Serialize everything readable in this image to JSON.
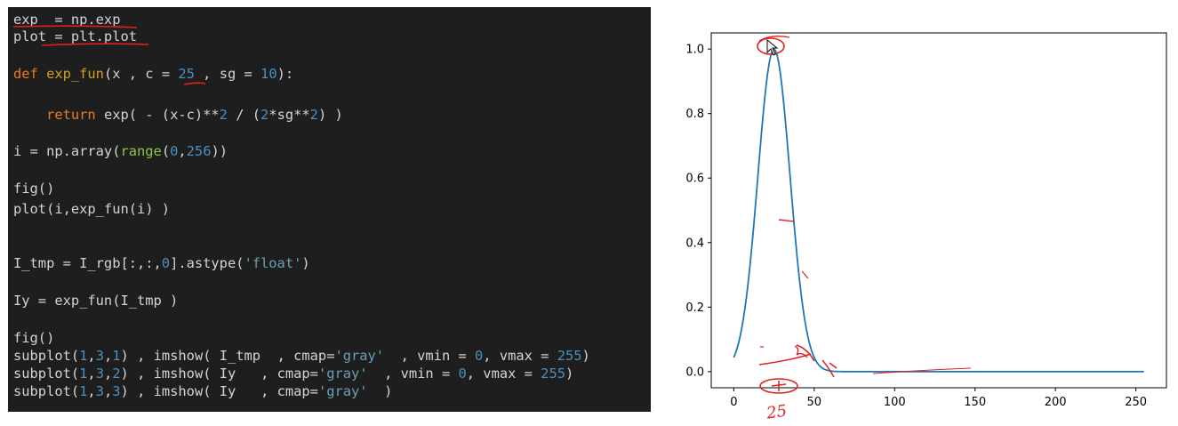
{
  "code": {
    "lines": [
      [
        [
          "exp  = np.exp",
          "#d4d4d4"
        ]
      ],
      [
        [
          "plot = plt.plot",
          "#d4d4d4"
        ]
      ],
      [],
      [
        [
          "def ",
          "#e67e22"
        ],
        [
          "exp_fun",
          "#d4a017"
        ],
        [
          "(x , c = ",
          "#d4d4d4"
        ],
        [
          "25",
          "#4a90c2"
        ],
        [
          " , sg = ",
          "#d4d4d4"
        ],
        [
          "10",
          "#4a90c2"
        ],
        [
          "):",
          "#d4d4d4"
        ]
      ],
      [],
      [
        [
          "    return ",
          "#e67e22"
        ],
        [
          "exp( - (x-c)**",
          "#d4d4d4"
        ],
        [
          "2",
          "#4a90c2"
        ],
        [
          " / (",
          "#d4d4d4"
        ],
        [
          "2",
          "#4a90c2"
        ],
        [
          "*sg**",
          "#d4d4d4"
        ],
        [
          "2",
          "#4a90c2"
        ],
        [
          ") )",
          "#d4d4d4"
        ]
      ],
      [],
      [
        [
          "i = np.array(",
          "#d4d4d4"
        ],
        [
          "range",
          "#8bc34a"
        ],
        [
          "(",
          "#d4d4d4"
        ],
        [
          "0",
          "#4a90c2"
        ],
        [
          ",",
          "#d4d4d4"
        ],
        [
          "256",
          "#4a90c2"
        ],
        [
          "))",
          "#d4d4d4"
        ]
      ],
      [],
      [
        [
          "fig()",
          "#d4d4d4"
        ]
      ],
      [
        [
          "plot(i,exp_fun(i) )",
          "#d4d4d4"
        ]
      ],
      [],
      [],
      [
        [
          "I_tmp = I_rgb[:,:,",
          "#d4d4d4"
        ],
        [
          "0",
          "#4a90c2"
        ],
        [
          "].astype(",
          "#d4d4d4"
        ],
        [
          "'float'",
          "#6a9fb5"
        ],
        [
          ")",
          "#d4d4d4"
        ]
      ],
      [],
      [
        [
          "Iy = exp_fun(I_tmp )",
          "#d4d4d4"
        ]
      ],
      [],
      [
        [
          "fig()",
          "#d4d4d4"
        ]
      ],
      [
        [
          "subplot(",
          "#d4d4d4"
        ],
        [
          "1",
          "#4a90c2"
        ],
        [
          ",",
          "#d4d4d4"
        ],
        [
          "3",
          "#4a90c2"
        ],
        [
          ",",
          "#d4d4d4"
        ],
        [
          "1",
          "#4a90c2"
        ],
        [
          ") , imshow( I_tmp  , cmap=",
          "#d4d4d4"
        ],
        [
          "'gray'",
          "#6a9fb5"
        ],
        [
          "  , vmin = ",
          "#d4d4d4"
        ],
        [
          "0",
          "#4a90c2"
        ],
        [
          ", vmax = ",
          "#d4d4d4"
        ],
        [
          "255",
          "#4a90c2"
        ],
        [
          ")",
          "#d4d4d4"
        ]
      ],
      [
        [
          "subplot(",
          "#d4d4d4"
        ],
        [
          "1",
          "#4a90c2"
        ],
        [
          ",",
          "#d4d4d4"
        ],
        [
          "3",
          "#4a90c2"
        ],
        [
          ",",
          "#d4d4d4"
        ],
        [
          "2",
          "#4a90c2"
        ],
        [
          ") , imshow( Iy   , cmap=",
          "#d4d4d4"
        ],
        [
          "'gray'",
          "#6a9fb5"
        ],
        [
          "  , vmin = ",
          "#d4d4d4"
        ],
        [
          "0",
          "#4a90c2"
        ],
        [
          ", vmax = ",
          "#d4d4d4"
        ],
        [
          "255",
          "#4a90c2"
        ],
        [
          ")",
          "#d4d4d4"
        ]
      ],
      [
        [
          "subplot(",
          "#d4d4d4"
        ],
        [
          "1",
          "#4a90c2"
        ],
        [
          ",",
          "#d4d4d4"
        ],
        [
          "3",
          "#4a90c2"
        ],
        [
          ",",
          "#d4d4d4"
        ],
        [
          "3",
          "#4a90c2"
        ],
        [
          ") , imshow( Iy   , cmap=",
          "#d4d4d4"
        ],
        [
          "'gray'",
          "#6a9fb5"
        ],
        [
          "  )",
          "#d4d4d4"
        ]
      ]
    ]
  },
  "chart_data": {
    "type": "line",
    "function": "exp(-(x-25)**2/(2*10**2))",
    "x_range": [
      0,
      255
    ],
    "xlim": [
      -14,
      269
    ],
    "ylim": [
      -0.05,
      1.05
    ],
    "xticks": [
      0,
      50,
      100,
      150,
      200,
      250
    ],
    "yticks": [
      0.0,
      0.2,
      0.4,
      0.6,
      0.8,
      1.0
    ],
    "xtick_labels": [
      "0",
      "50",
      "100",
      "150",
      "200",
      "250"
    ],
    "ytick_labels": [
      "0.0",
      "0.2",
      "0.4",
      "0.6",
      "0.8",
      "1.0"
    ],
    "series": [
      {
        "color": "#1f77b4"
      }
    ],
    "grid": false
  },
  "annotations": {
    "color": "#e02020",
    "handwritten_label": "25"
  }
}
